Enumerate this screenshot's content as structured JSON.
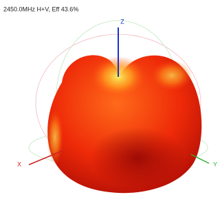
{
  "title": "2450.0MHz H+V, Eff 43.6%",
  "axes": {
    "z": "Z",
    "x": "X",
    "y": "Y"
  }
}
